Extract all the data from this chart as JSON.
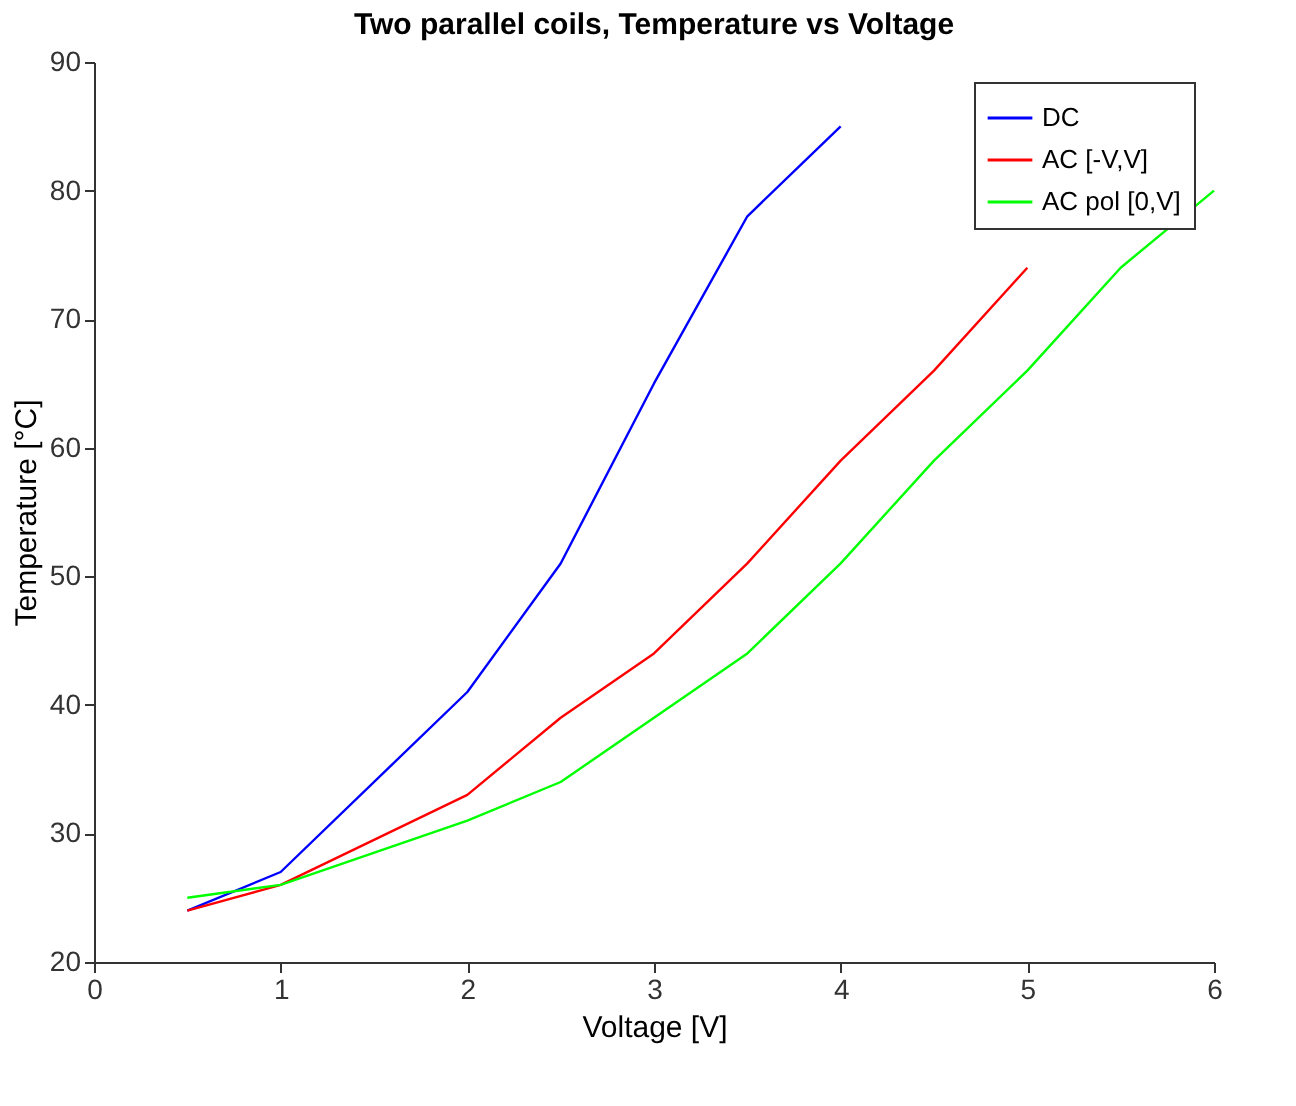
{
  "chart_data": {
    "type": "line",
    "title": "Two parallel coils, Temperature vs Voltage",
    "xlabel": "Voltage [V]",
    "ylabel": "Temperature [°C]",
    "xlim": [
      0,
      6
    ],
    "xticks": [
      0,
      1,
      2,
      3,
      4,
      5,
      6
    ],
    "ylim": [
      20,
      90
    ],
    "yticks": [
      20,
      30,
      40,
      50,
      60,
      70,
      80,
      90
    ],
    "grid": false,
    "legend": "top right",
    "series": [
      {
        "name": "DC",
        "color": "#0000ff",
        "x": [
          0.5,
          1,
          2,
          2.5,
          3,
          3.5,
          4
        ],
        "values": [
          24,
          27,
          41,
          51,
          65,
          78,
          85
        ]
      },
      {
        "name": "AC [-V,V]",
        "color": "#ff0000",
        "x": [
          0.5,
          1,
          2,
          2.5,
          3,
          3.5,
          4,
          4.5,
          5
        ],
        "values": [
          24,
          26,
          33,
          39,
          44,
          51,
          59,
          66,
          74
        ]
      },
      {
        "name": "AC pol [0,V]",
        "color": "#00ff00",
        "x": [
          0.5,
          1,
          2,
          2.5,
          3,
          3.5,
          4,
          4.5,
          5,
          5.5,
          6
        ],
        "values": [
          25,
          26,
          31,
          34,
          39,
          44,
          51,
          59,
          66,
          74,
          80
        ]
      }
    ]
  }
}
